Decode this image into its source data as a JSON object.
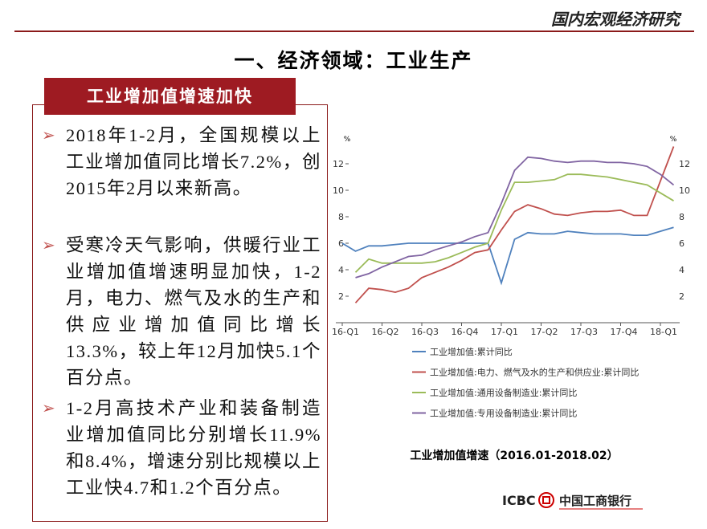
{
  "header": {
    "title": "国内宏观经济研究"
  },
  "slide_title": "一、经济领域：工业生产",
  "box": {
    "tab": "工业增加值增速加快",
    "bullets": [
      "2018年1-2月，全国规模以上工业增加值同比增长7.2%，创2015年2月以来新高。",
      "受寒冷天气影响，供暖行业工业增加值增速明显加快，1-2月，电力、燃气及水的生产和供应业增加值同比增长13.3%，较上年12月加快5.1个百分点。",
      "1-2月高技术产业和装备制造业增加值同比分别增长11.9%和8.4%，增速分别比规模以上工业快4.7和1.2个百分点。"
    ]
  },
  "chart_data": {
    "type": "line",
    "title": "工业增加值增速（2016.01-2018.02）",
    "y_unit": "%",
    "categories": [
      "16-Q1",
      null,
      null,
      "16-Q2",
      null,
      null,
      "16-Q3",
      null,
      null,
      "16-Q4",
      null,
      null,
      "17-Q1",
      null,
      null,
      "17-Q2",
      null,
      null,
      "17-Q3",
      null,
      null,
      "17-Q4",
      null,
      null,
      "18-Q1",
      null
    ],
    "ylim": [
      0,
      14
    ],
    "yticks": [
      2,
      4,
      6,
      8,
      10,
      12
    ],
    "series": [
      {
        "name": "工业增加值:累计同比",
        "color": "#4f81bd",
        "values": [
          6.0,
          5.4,
          5.8,
          5.8,
          5.9,
          6.0,
          6.0,
          6.0,
          6.0,
          6.0,
          6.0,
          6.0,
          3.0,
          6.3,
          6.8,
          6.7,
          6.7,
          6.9,
          6.8,
          6.7,
          6.7,
          6.7,
          6.6,
          6.6,
          6.9,
          7.2
        ]
      },
      {
        "name": "工业增加值:电力、燃气及水的生产和供应业:累计同比",
        "color": "#c0504d",
        "values": [
          null,
          1.5,
          2.6,
          2.5,
          2.3,
          2.6,
          3.4,
          3.8,
          4.2,
          4.7,
          5.3,
          5.5,
          7.0,
          8.4,
          8.9,
          8.6,
          8.2,
          8.1,
          8.3,
          8.4,
          8.4,
          8.5,
          8.1,
          8.1,
          10.7,
          13.3
        ]
      },
      {
        "name": "工业增加值:通用设备制造业:累计同比",
        "color": "#9bbb59",
        "values": [
          null,
          3.8,
          4.8,
          4.5,
          4.5,
          4.5,
          4.5,
          4.6,
          4.9,
          5.3,
          5.7,
          6.0,
          8.5,
          10.6,
          10.6,
          10.7,
          10.8,
          11.2,
          11.2,
          11.1,
          11.0,
          10.8,
          10.6,
          10.4,
          9.8,
          9.2
        ]
      },
      {
        "name": "工业增加值:专用设备制造业:累计同比",
        "color": "#8064a2",
        "values": [
          null,
          3.4,
          3.7,
          4.2,
          4.6,
          5.0,
          5.1,
          5.5,
          5.8,
          6.1,
          6.5,
          6.8,
          9.0,
          11.5,
          12.5,
          12.4,
          12.2,
          12.1,
          12.2,
          12.2,
          12.1,
          12.1,
          12.0,
          11.8,
          11.2,
          10.4
        ]
      }
    ]
  },
  "footer": {
    "logo_text": "ICBC",
    "bank_name": "中国工商银行"
  }
}
